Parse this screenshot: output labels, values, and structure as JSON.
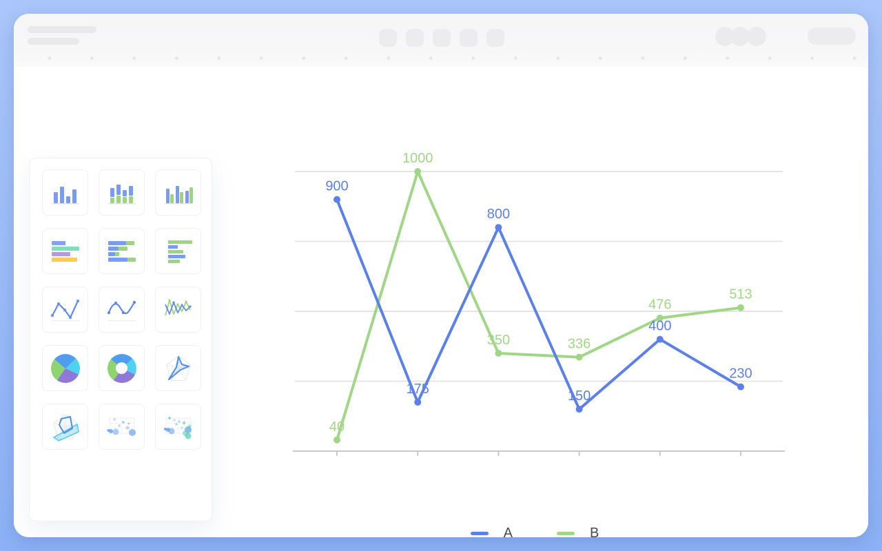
{
  "colors": {
    "frame_blue_top": "#abc7fa",
    "frame_blue_bottom": "#8db1f6",
    "toolbar_bg": "#f6f6f7",
    "placeholder_gray": "#ececee",
    "gridline": "#e4e4e4",
    "axis": "#c9c9cd",
    "legend_text": "#4a4a4a"
  },
  "sidebar": {
    "chart_type_icons": [
      "bar-chart-icon",
      "stacked-bar-chart-icon",
      "grouped-bar-chart-icon",
      "horizontal-bar-chart-icon",
      "stacked-horizontal-bar-chart-icon",
      "paired-horizontal-bar-chart-icon",
      "line-chart-icon",
      "smooth-line-chart-icon",
      "multi-line-chart-icon",
      "pie-chart-icon",
      "donut-chart-icon",
      "radar-chart-icon",
      "multi-radar-chart-icon",
      "bubble-chart-icon",
      "multi-series-bubble-chart-icon"
    ],
    "icon_colors": {
      "blue": "#779df2",
      "green": "#9ed47f",
      "mint": "#7cdfbd",
      "purple": "#b299e1",
      "yellow": "#fbcb55",
      "pie_blue": "#4f9cf1",
      "cyan": "#4fd2f2",
      "pie_purple": "#9077d8",
      "pie_green": "#8ed470",
      "radar_blue": "#4a90e8",
      "radar_cyan": "#58cbe9",
      "bubble_blue": "#6aa3ee",
      "bubble_teal": "#58d6b2"
    }
  },
  "chart_data": {
    "type": "line",
    "categories": [
      "",
      "",
      "",
      "",
      "",
      ""
    ],
    "series": [
      {
        "name": "A",
        "color": "#5c80e9",
        "values": [
          900,
          175,
          800,
          150,
          400,
          230
        ]
      },
      {
        "name": "B",
        "color": "#a0d685",
        "values": [
          40,
          1000,
          350,
          336,
          476,
          513
        ]
      }
    ],
    "title": "",
    "xlabel": "",
    "ylabel": "",
    "ylim": [
      0,
      1000
    ],
    "y_gridlines": [
      250,
      500,
      750,
      1000
    ],
    "grid": "horizontal",
    "markers": true,
    "point_labels": true,
    "legend_position": "bottom"
  }
}
